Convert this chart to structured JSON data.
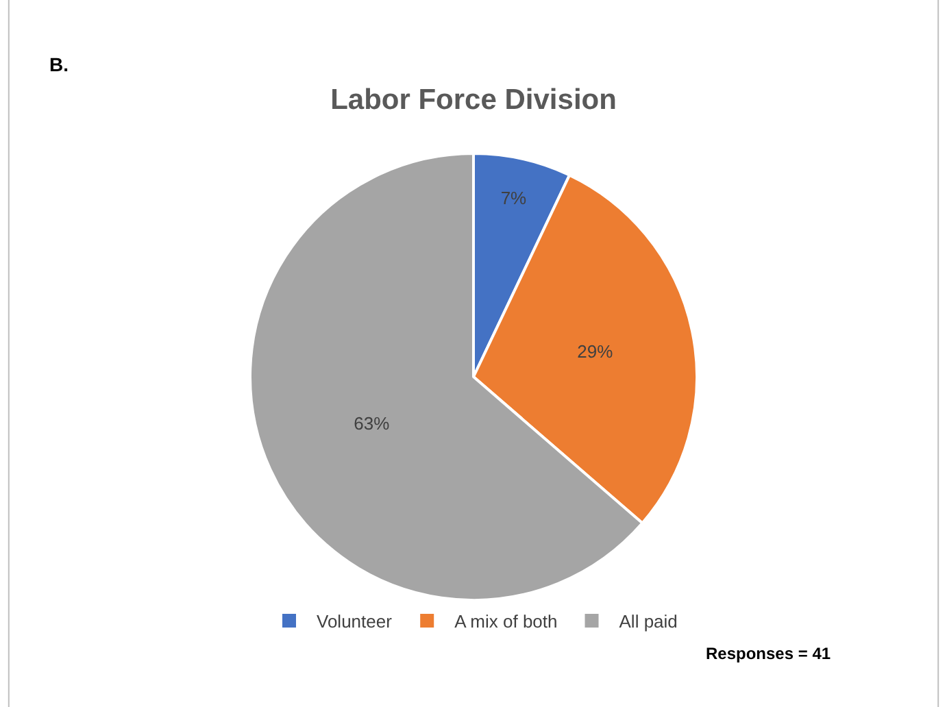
{
  "chart_data": {
    "type": "pie",
    "title": "Labor Force Division",
    "categories": [
      "Volunteer",
      "A mix of both",
      "All paid"
    ],
    "values": [
      7,
      29,
      63
    ],
    "colors": [
      "#4472c4",
      "#ed7d31",
      "#a5a5a5"
    ],
    "value_labels": [
      "7%",
      "29%",
      "63%"
    ],
    "legend": "bottom",
    "annotations": [
      "B.",
      "Responses = 41"
    ]
  }
}
